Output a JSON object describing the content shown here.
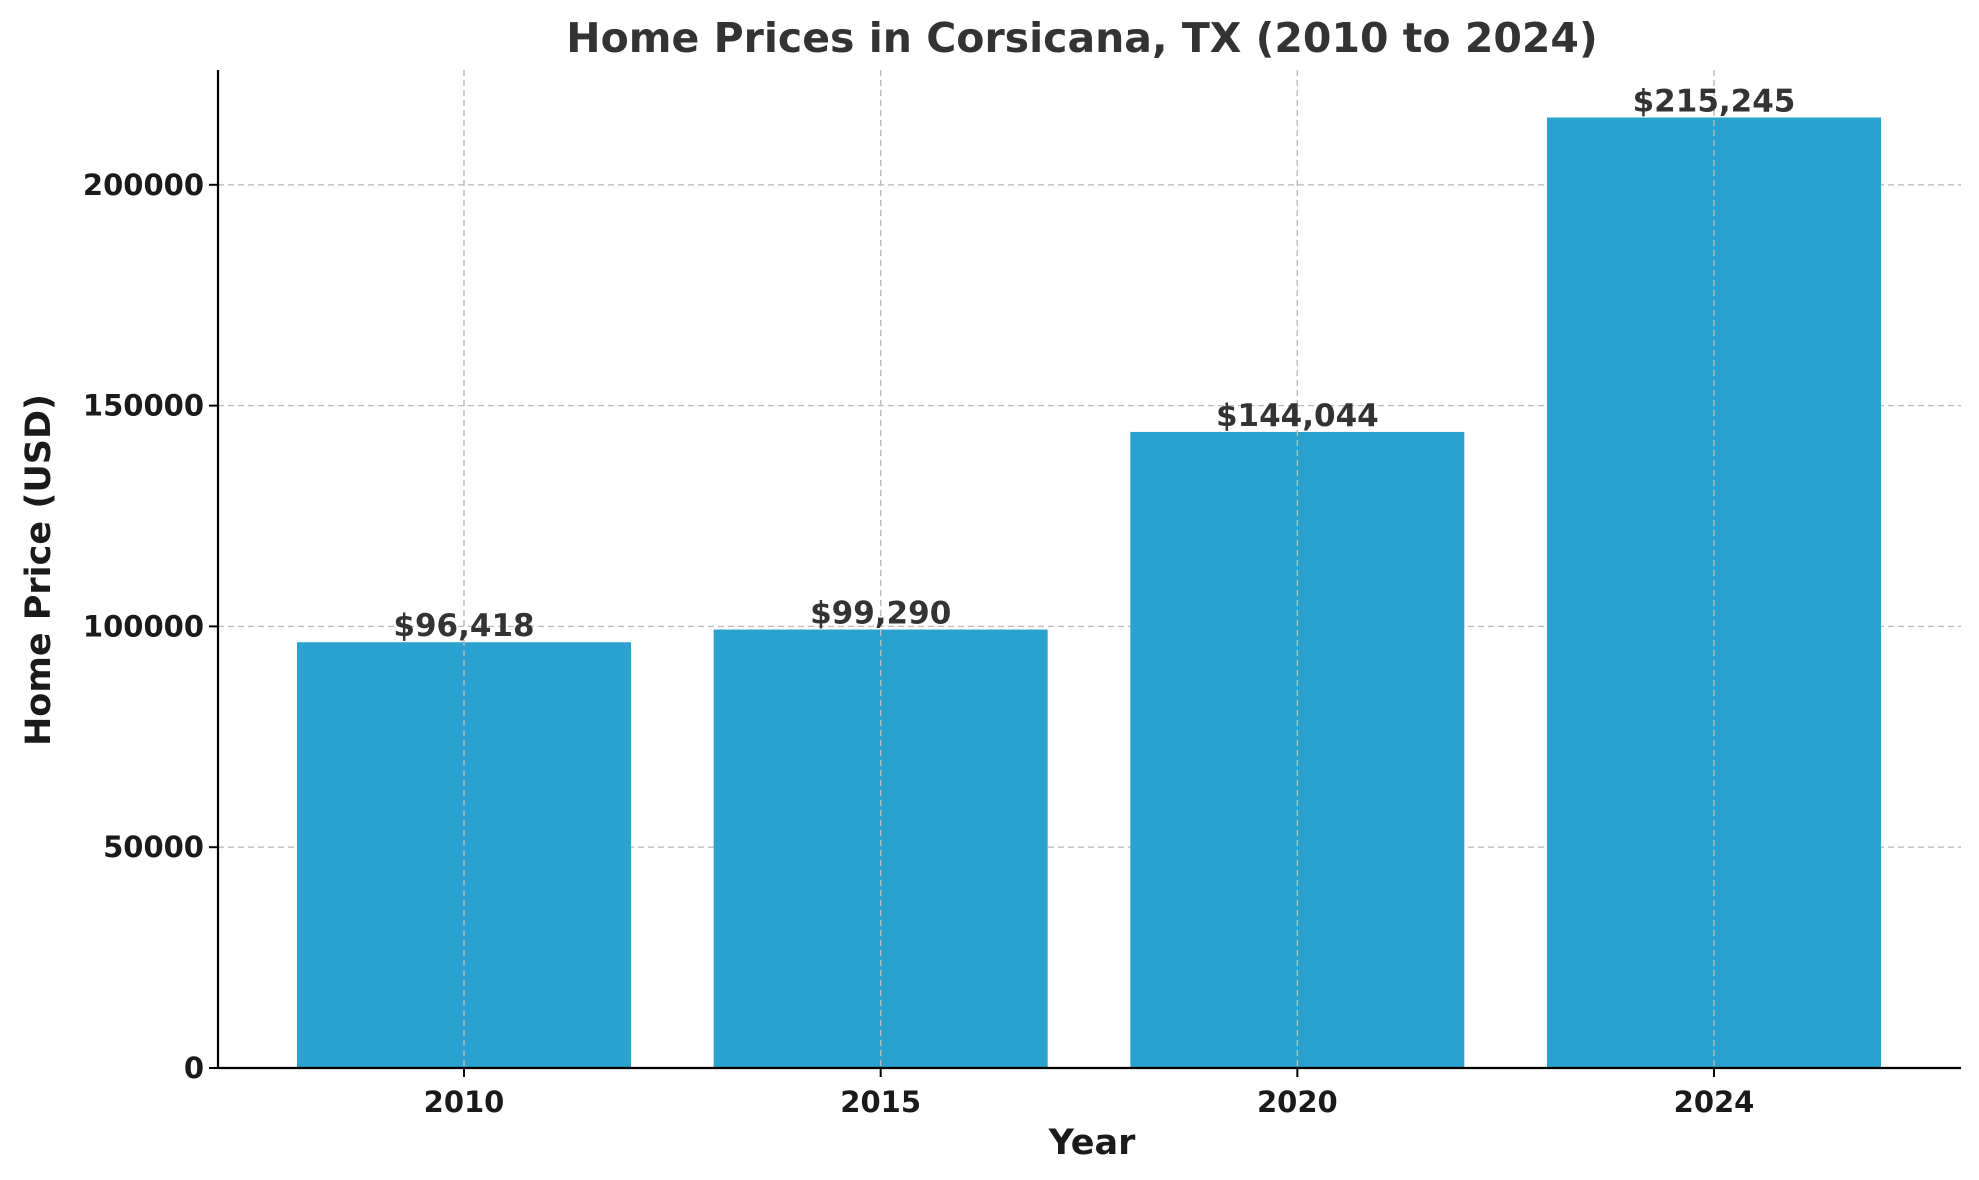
{
  "chart_data": {
    "type": "bar",
    "title": "Home Prices in Corsicana, TX (2010 to 2024)",
    "xlabel": "Year",
    "ylabel": "Home Price (USD)",
    "categories": [
      "2010",
      "2015",
      "2020",
      "2024"
    ],
    "values": [
      96418,
      99290,
      144044,
      215245
    ],
    "data_labels": [
      "$96,418",
      "$99,290",
      "$144,044",
      "$215,245"
    ],
    "yticks": [
      0,
      50000,
      100000,
      150000,
      200000
    ],
    "ylim": [
      0,
      226000
    ],
    "grid": true,
    "legend": "none",
    "bar_color": "#2ba1cf"
  }
}
